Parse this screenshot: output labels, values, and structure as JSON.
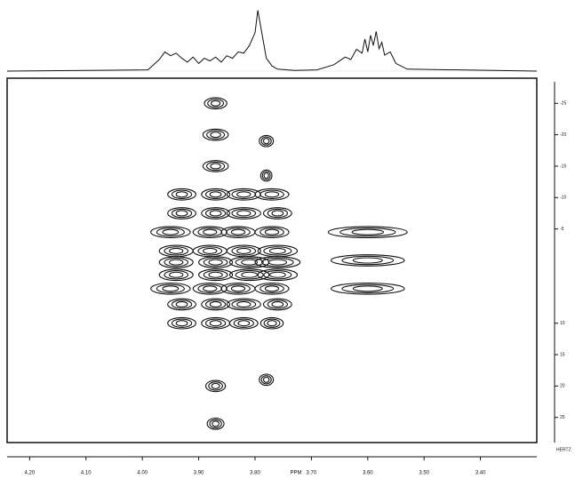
{
  "chart_data": {
    "type": "contour",
    "x_label": "PPM",
    "y2_label": "HERTZ",
    "xlim": [
      4.24,
      3.3
    ],
    "xticks": [
      {
        "value": 4.2,
        "label": "4.20"
      },
      {
        "value": 4.1,
        "label": "4.10"
      },
      {
        "value": 4.0,
        "label": "4.00"
      },
      {
        "value": 3.9,
        "label": "3.90"
      },
      {
        "value": 3.8,
        "label": "3.80"
      },
      {
        "value": 3.7,
        "label": "3.70"
      },
      {
        "value": 3.6,
        "label": "3.60"
      },
      {
        "value": 3.5,
        "label": "3.50"
      },
      {
        "value": 3.4,
        "label": "3.40"
      }
    ],
    "y2lim": [
      -29,
      29
    ],
    "y2ticks": [
      -25,
      -20,
      -15,
      -10,
      -5,
      10,
      15,
      20,
      25
    ],
    "color": "#111111",
    "spectrum": {
      "x": [
        4.24,
        3.99,
        3.97,
        3.96,
        3.95,
        3.94,
        3.93,
        3.92,
        3.91,
        3.9,
        3.89,
        3.88,
        3.87,
        3.86,
        3.85,
        3.84,
        3.83,
        3.82,
        3.81,
        3.8,
        3.795,
        3.79,
        3.785,
        3.78,
        3.77,
        3.76,
        3.73,
        3.69,
        3.66,
        3.64,
        3.63,
        3.62,
        3.61,
        3.605,
        3.6,
        3.595,
        3.59,
        3.585,
        3.58,
        3.575,
        3.57,
        3.56,
        3.55,
        3.53,
        3.3
      ],
      "values": [
        0,
        2,
        18,
        30,
        24,
        28,
        20,
        14,
        22,
        12,
        20,
        16,
        22,
        14,
        24,
        20,
        30,
        28,
        40,
        60,
        95,
        70,
        45,
        20,
        8,
        3,
        1,
        2,
        10,
        22,
        18,
        34,
        28,
        50,
        30,
        56,
        40,
        62,
        35,
        45,
        25,
        30,
        12,
        3,
        0
      ]
    },
    "contour": {
      "x": [
        3.87,
        3.87,
        3.87,
        3.87,
        3.87,
        3.78,
        3.78,
        3.78,
        3.93,
        3.87,
        3.82,
        3.77,
        3.93,
        3.87,
        3.82,
        3.76,
        3.95,
        3.88,
        3.83,
        3.77,
        3.94,
        3.88,
        3.82,
        3.76,
        3.94,
        3.87,
        3.81,
        3.76,
        3.94,
        3.87,
        3.81,
        3.76,
        3.95,
        3.88,
        3.83,
        3.77,
        3.93,
        3.87,
        3.82,
        3.76,
        3.93,
        3.87,
        3.82,
        3.77,
        3.6,
        3.6,
        3.6
      ],
      "y": [
        -25,
        -20,
        -15,
        20,
        26,
        -19,
        -13.5,
        19,
        -10.5,
        -10.5,
        -10.5,
        -10.5,
        -7.5,
        -7.5,
        -7.5,
        -7.5,
        -4.5,
        -4.5,
        -4.5,
        -4.5,
        -1.5,
        -1.5,
        -1.5,
        -1.5,
        0.3,
        0.3,
        0.3,
        0.3,
        2.3,
        2.3,
        2.3,
        2.3,
        4.5,
        4.5,
        4.5,
        4.5,
        7,
        7,
        7,
        7,
        10,
        10,
        10,
        10,
        -4.5,
        0,
        4.5
      ],
      "widths": [
        0.04,
        0.045,
        0.045,
        0.035,
        0.03,
        0.025,
        0.02,
        0.025,
        0.05,
        0.05,
        0.06,
        0.06,
        0.05,
        0.05,
        0.06,
        0.05,
        0.07,
        0.06,
        0.06,
        0.06,
        0.06,
        0.06,
        0.06,
        0.07,
        0.06,
        0.06,
        0.07,
        0.08,
        0.06,
        0.06,
        0.07,
        0.07,
        0.07,
        0.06,
        0.06,
        0.06,
        0.05,
        0.05,
        0.06,
        0.05,
        0.05,
        0.05,
        0.05,
        0.04,
        0.14,
        0.13,
        0.13
      ]
    }
  }
}
